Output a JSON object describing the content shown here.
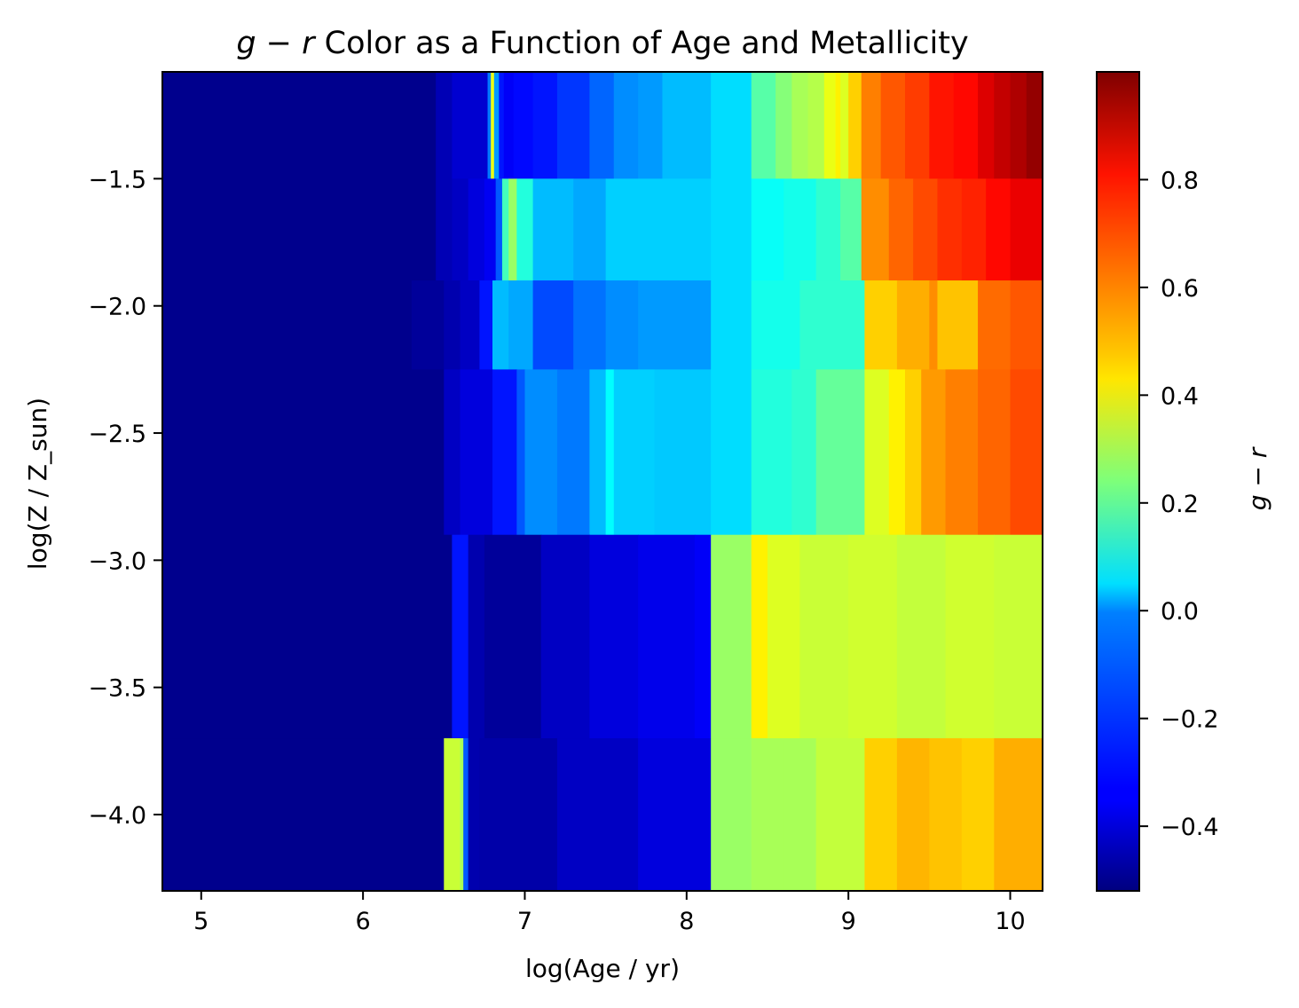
{
  "chart_data": {
    "type": "heatmap",
    "title": {
      "italic_var": "g",
      "op": " − ",
      "italic_var2": "r",
      "rest": " Color as a Function of Age and Metallicity"
    },
    "xlabel": "log(Age / yr)",
    "ylabel": "log(Z / Z_sun)",
    "xlim": [
      4.76,
      10.2
    ],
    "ylim": [
      -4.3,
      -1.08
    ],
    "xticks": [
      5,
      6,
      7,
      8,
      9,
      10
    ],
    "yticks": [
      -4.0,
      -3.5,
      -3.0,
      -2.5,
      -2.0,
      -1.5
    ],
    "ytick_labels": [
      "−4.0",
      "−3.5",
      "−3.0",
      "−2.5",
      "−2.0",
      "−1.5"
    ],
    "colorbar": {
      "label": {
        "v1": "g",
        "op": " − ",
        "v2": "r"
      },
      "range": [
        -0.52,
        1.0
      ],
      "ticks": [
        -0.4,
        -0.2,
        0.0,
        0.2,
        0.4,
        0.6,
        0.8
      ],
      "tick_labels": [
        "−0.4",
        "−0.2",
        "0.0",
        "0.2",
        "0.4",
        "0.6",
        "0.8"
      ],
      "colormap": "jet"
    },
    "rows": [
      {
        "log_z": -1.3,
        "y_range": [
          -1.5,
          -1.08
        ],
        "x_edges": [
          4.76,
          6.45,
          6.55,
          6.77,
          6.79,
          6.81,
          6.84,
          6.87,
          6.93,
          7.05,
          7.2,
          7.4,
          7.55,
          7.7,
          7.85,
          8.15,
          8.4,
          8.55,
          8.65,
          8.75,
          8.85,
          8.92,
          8.95,
          9.0,
          9.08,
          9.2,
          9.35,
          9.5,
          9.65,
          9.8,
          9.9,
          10.0,
          10.1,
          10.2
        ],
        "values": [
          -0.5,
          -0.44,
          -0.4,
          -0.15,
          0.4,
          -0.1,
          -0.3,
          -0.34,
          -0.32,
          -0.3,
          -0.25,
          -0.18,
          -0.12,
          -0.1,
          -0.05,
          0.0,
          0.18,
          0.25,
          0.3,
          0.32,
          0.4,
          0.45,
          0.38,
          0.5,
          0.62,
          0.68,
          0.72,
          0.78,
          0.8,
          0.86,
          0.9,
          0.93,
          0.97
        ]
      },
      {
        "log_z": -1.7,
        "y_range": [
          -1.9,
          -1.5
        ],
        "x_edges": [
          4.76,
          6.45,
          6.55,
          6.65,
          6.75,
          6.82,
          6.86,
          6.9,
          6.95,
          7.05,
          7.3,
          7.5,
          8.15,
          8.4,
          8.6,
          8.8,
          8.95,
          9.08,
          9.25,
          9.4,
          9.55,
          9.7,
          9.85,
          10.0,
          10.2
        ],
        "values": [
          -0.5,
          -0.44,
          -0.42,
          -0.38,
          -0.35,
          -0.2,
          0.15,
          0.28,
          0.1,
          -0.05,
          -0.08,
          -0.02,
          0.0,
          0.06,
          0.08,
          0.12,
          0.18,
          0.6,
          0.66,
          0.7,
          0.74,
          0.76,
          0.8,
          0.84
        ]
      },
      {
        "log_z": -2.1,
        "y_range": [
          -2.25,
          -1.9
        ],
        "x_edges": [
          4.76,
          6.3,
          6.5,
          6.6,
          6.72,
          6.8,
          6.9,
          7.05,
          7.3,
          7.5,
          7.7,
          8.15,
          8.4,
          8.7,
          9.1,
          9.3,
          9.5,
          9.55,
          9.8,
          10.0,
          10.2
        ],
        "values": [
          -0.5,
          -0.48,
          -0.45,
          -0.42,
          -0.3,
          -0.05,
          -0.08,
          -0.22,
          -0.16,
          -0.12,
          -0.1,
          0.0,
          0.08,
          0.12,
          0.5,
          0.55,
          0.6,
          0.52,
          0.65,
          0.68
        ]
      },
      {
        "log_z": -2.55,
        "y_range": [
          -2.9,
          -2.25
        ],
        "x_edges": [
          4.76,
          6.5,
          6.6,
          6.8,
          6.95,
          7.0,
          7.2,
          7.4,
          7.5,
          7.55,
          7.8,
          8.15,
          8.4,
          8.65,
          8.8,
          9.1,
          9.25,
          9.35,
          9.45,
          9.6,
          9.8,
          10.0,
          10.2
        ],
        "values": [
          -0.5,
          -0.42,
          -0.38,
          -0.3,
          -0.2,
          -0.12,
          -0.15,
          -0.05,
          0.05,
          -0.02,
          -0.03,
          0.0,
          0.1,
          0.12,
          0.2,
          0.38,
          0.45,
          0.5,
          0.58,
          0.62,
          0.66,
          0.7
        ]
      },
      {
        "log_z": -3.3,
        "y_range": [
          -3.7,
          -2.9
        ],
        "x_edges": [
          4.76,
          6.55,
          6.65,
          6.75,
          7.1,
          7.4,
          7.7,
          8.05,
          8.15,
          8.4,
          8.5,
          8.7,
          9.0,
          9.3,
          9.6,
          9.9,
          10.2
        ],
        "values": [
          -0.5,
          -0.3,
          -0.45,
          -0.48,
          -0.42,
          -0.38,
          -0.36,
          -0.34,
          0.28,
          0.45,
          0.38,
          0.35,
          0.36,
          0.34,
          0.36,
          0.35
        ]
      },
      {
        "log_z": -4.0,
        "y_range": [
          -4.3,
          -3.7
        ],
        "x_edges": [
          4.76,
          6.5,
          6.6,
          6.62,
          6.65,
          6.72,
          7.2,
          7.7,
          8.15,
          8.4,
          8.6,
          8.8,
          9.1,
          9.3,
          9.5,
          9.7,
          9.9,
          10.2
        ],
        "values": [
          -0.5,
          0.35,
          0.3,
          -0.2,
          -0.45,
          -0.46,
          -0.42,
          -0.38,
          0.28,
          0.3,
          0.3,
          0.34,
          0.5,
          0.54,
          0.52,
          0.5,
          0.55
        ]
      }
    ]
  }
}
